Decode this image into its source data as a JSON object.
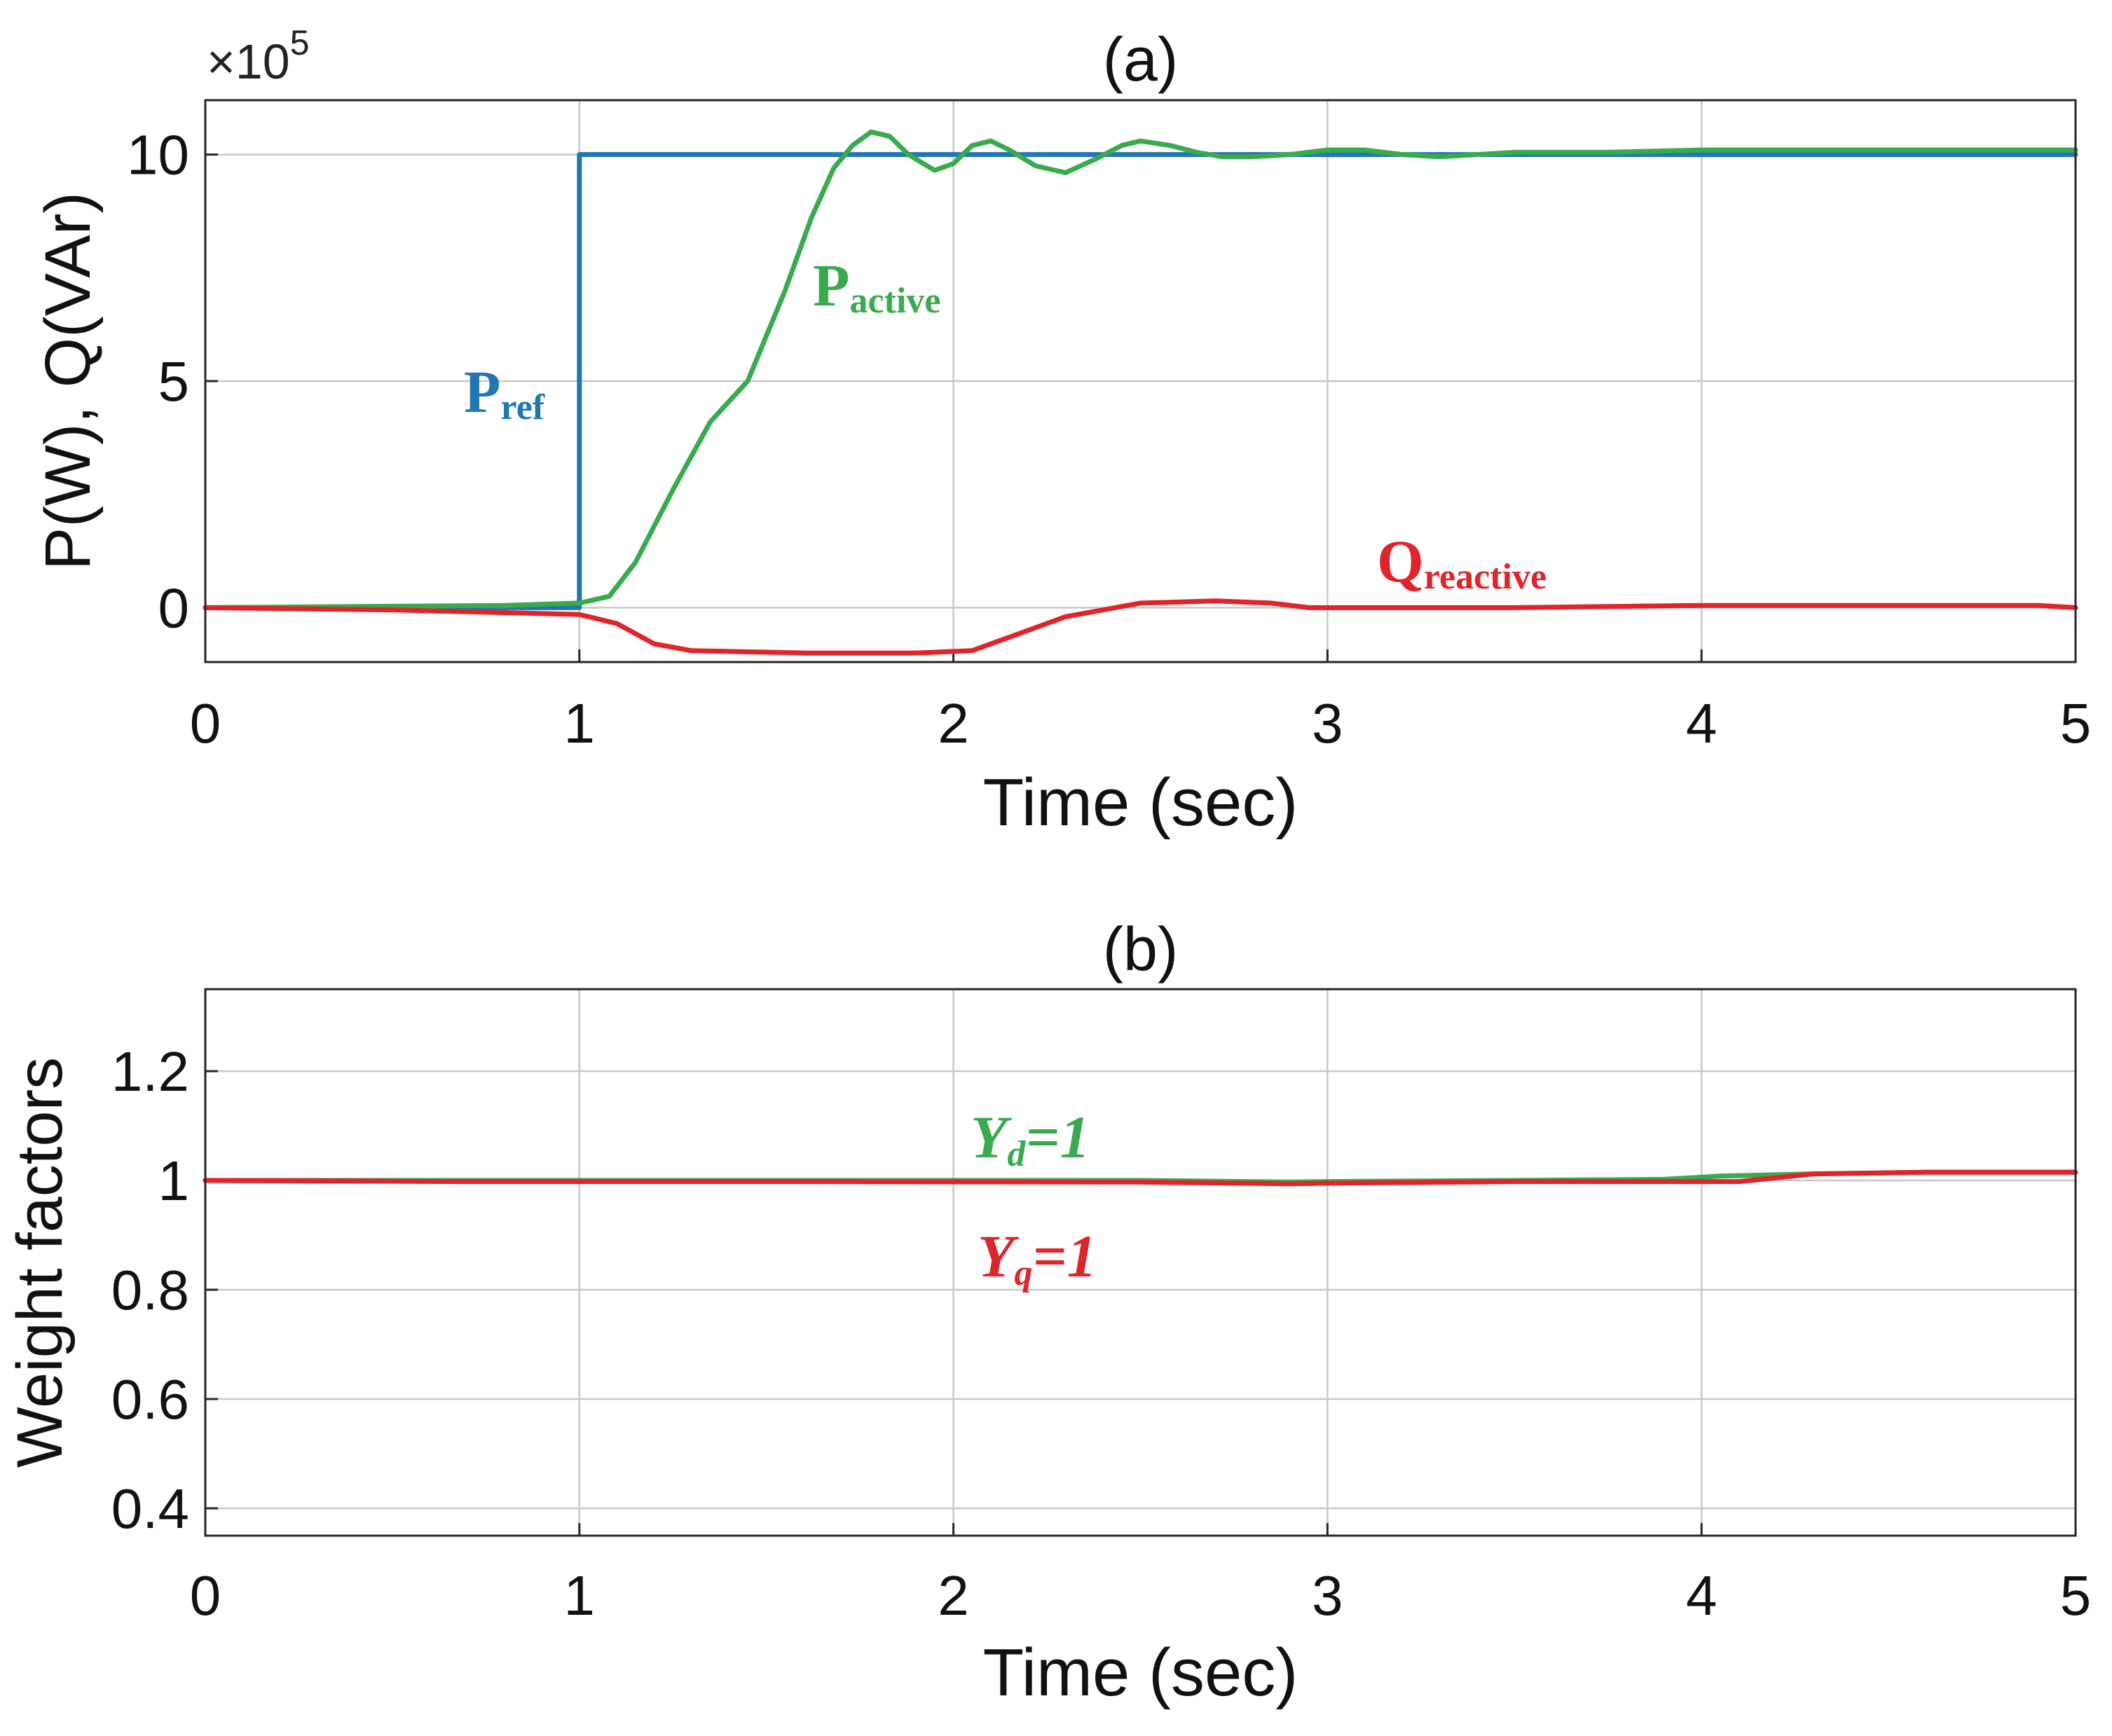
{
  "figure": {
    "description_panels": [
      "a",
      "b"
    ]
  },
  "colors": {
    "p_ref": "#1f77b4",
    "p_active": "#3aaa4f",
    "q_reactive": "#e0242b",
    "y_d": "#3aaa4f",
    "y_q": "#e0242b",
    "grid": "#c8c8c8",
    "axis": "#262626"
  },
  "chart_data": [
    {
      "type": "line",
      "title": "(a)",
      "xlabel": "Time (sec)",
      "ylabel": "P(W), Q(VAr)",
      "exponent_label": "×10",
      "exponent_power": "5",
      "xlim": [
        0,
        5
      ],
      "ylim": [
        -1.2,
        11.2
      ],
      "xticks": [
        "0",
        "1",
        "2",
        "3",
        "4",
        "5"
      ],
      "yticks": [
        "0",
        "5",
        "10"
      ],
      "ytick_values": [
        0,
        5,
        10
      ],
      "grid": true,
      "series": [
        {
          "name": "Pref",
          "label_main": "P",
          "label_sub": "ref",
          "color_key": "p_ref",
          "x": [
            0,
            1,
            1,
            5
          ],
          "y": [
            0,
            0,
            10,
            10
          ]
        },
        {
          "name": "Pactive",
          "label_main": "P",
          "label_sub": "active",
          "color_key": "p_active",
          "x": [
            0,
            0.8,
            1.0,
            1.08,
            1.15,
            1.25,
            1.35,
            1.45,
            1.55,
            1.62,
            1.68,
            1.73,
            1.78,
            1.83,
            1.88,
            1.95,
            2.0,
            2.05,
            2.1,
            2.15,
            2.22,
            2.3,
            2.38,
            2.45,
            2.5,
            2.58,
            2.65,
            2.72,
            2.8,
            2.9,
            3.0,
            3.1,
            3.2,
            3.3,
            3.4,
            3.5,
            3.75,
            4.0,
            4.5,
            5.0
          ],
          "y": [
            0,
            0.05,
            0.1,
            0.25,
            1.0,
            2.6,
            4.1,
            5.0,
            7.0,
            8.6,
            9.7,
            10.2,
            10.5,
            10.4,
            10.0,
            9.65,
            9.8,
            10.2,
            10.3,
            10.1,
            9.75,
            9.6,
            9.9,
            10.2,
            10.3,
            10.2,
            10.05,
            9.95,
            9.95,
            10.0,
            10.1,
            10.1,
            10.0,
            9.95,
            10.0,
            10.05,
            10.05,
            10.1,
            10.1,
            10.1
          ]
        },
        {
          "name": "Qreactive",
          "label_main": "Q",
          "label_sub": "reactive",
          "color_key": "q_reactive",
          "x": [
            0,
            0.5,
            1.0,
            1.1,
            1.2,
            1.3,
            1.6,
            1.9,
            2.05,
            2.15,
            2.3,
            2.5,
            2.7,
            2.85,
            2.95,
            3.0,
            3.5,
            4.0,
            4.5,
            4.9,
            5.0
          ],
          "y": [
            0,
            -0.05,
            -0.15,
            -0.35,
            -0.8,
            -0.95,
            -1.0,
            -1.0,
            -0.95,
            -0.65,
            -0.2,
            0.1,
            0.15,
            0.1,
            0.0,
            0.0,
            0.0,
            0.05,
            0.05,
            0.05,
            0.0
          ]
        }
      ]
    },
    {
      "type": "line",
      "title": "(b)",
      "xlabel": "Time (sec)",
      "ylabel": "Weight factors",
      "xlim": [
        0,
        5
      ],
      "ylim": [
        0.35,
        1.35
      ],
      "xticks": [
        "0",
        "1",
        "2",
        "3",
        "4",
        "5"
      ],
      "yticks": [
        "0.4",
        "0.6",
        "0.8",
        "1",
        "1.2"
      ],
      "ytick_values": [
        0.4,
        0.6,
        0.8,
        1.0,
        1.2
      ],
      "grid": true,
      "series": [
        {
          "name": "Yd=1",
          "label_main": "Y",
          "label_sub": "d",
          "label_tail": "=1",
          "color_key": "y_d",
          "x": [
            0,
            0.7,
            1.5,
            2.5,
            2.9,
            3.0,
            3.5,
            3.9,
            4.05,
            4.3,
            4.6,
            5.0
          ],
          "y": [
            1.0,
            1.0,
            1.0,
            1.0,
            0.997,
            0.998,
            1.0,
            1.002,
            1.008,
            1.012,
            1.015,
            1.015
          ]
        },
        {
          "name": "Yq=1",
          "label_main": "Y",
          "label_sub": "q",
          "label_tail": "=1",
          "color_key": "y_q",
          "x": [
            0,
            0.7,
            1.5,
            2.5,
            2.9,
            3.0,
            3.5,
            4.0,
            4.1,
            4.3,
            4.6,
            5.0
          ],
          "y": [
            1.0,
            0.998,
            0.998,
            0.997,
            0.994,
            0.995,
            0.998,
            0.998,
            0.998,
            1.012,
            1.015,
            1.015
          ]
        }
      ]
    }
  ]
}
